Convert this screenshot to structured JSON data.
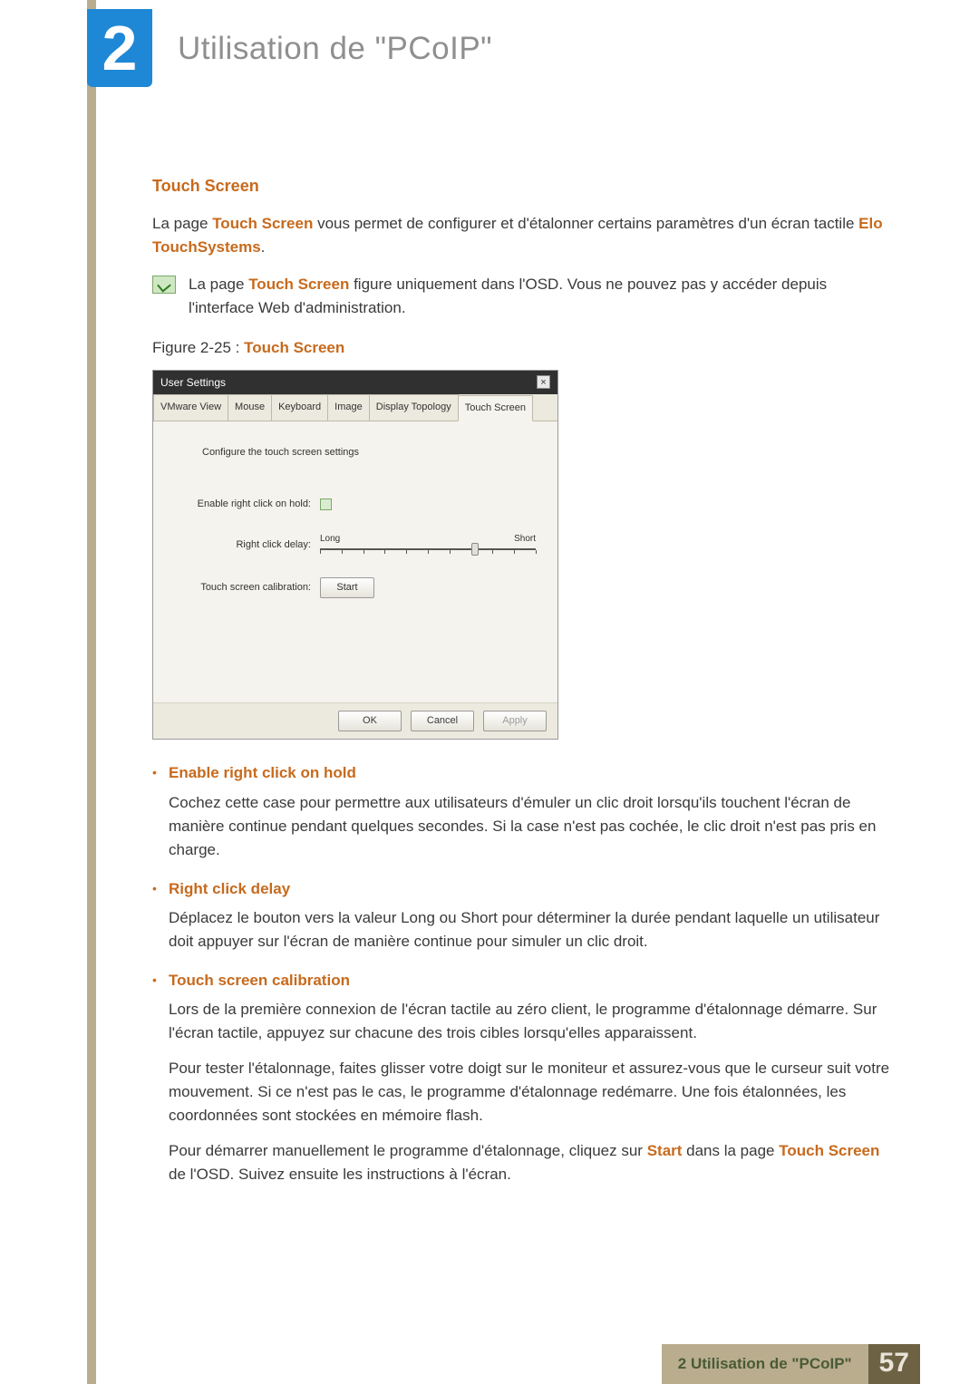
{
  "chapter": {
    "number": "2",
    "title": "Utilisation de \"PCoIP\""
  },
  "section": {
    "heading": "Touch Screen"
  },
  "intro": {
    "p1_pre": "La page ",
    "p1_hl1": "Touch Screen",
    "p1_mid": " vous permet de configurer et d'étalonner certains paramètres d'un écran tactile ",
    "p1_hl2": "Elo TouchSystems",
    "p1_post": "."
  },
  "note": {
    "pre": "La page ",
    "hl": "Touch Screen",
    "post": " figure uniquement dans l'OSD. Vous ne pouvez pas y accéder depuis l'interface Web d'administration."
  },
  "figure": {
    "label": "Figure 2-25 : ",
    "name": "Touch Screen"
  },
  "screenshot": {
    "title": "User Settings",
    "tabs": [
      "VMware View",
      "Mouse",
      "Keyboard",
      "Image",
      "Display Topology",
      "Touch Screen"
    ],
    "active_tab": "Touch Screen",
    "heading": "Configure the touch screen settings",
    "row_enable_label": "Enable right click on hold:",
    "row_delay_label": "Right click delay:",
    "row_calib_label": "Touch screen calibration:",
    "slider": {
      "left": "Long",
      "right": "Short",
      "ticks": 11,
      "thumb_pct": 72
    },
    "start_btn": "Start",
    "buttons": {
      "ok": "OK",
      "cancel": "Cancel",
      "apply": "Apply"
    }
  },
  "items": [
    {
      "title": "Enable right click on hold",
      "body": [
        "Cochez cette case pour permettre aux utilisateurs d'émuler un clic droit lorsqu'ils touchent l'écran de manière continue pendant quelques secondes. Si la case n'est pas cochée, le clic droit n'est pas pris en charge."
      ]
    },
    {
      "title": "Right click delay",
      "body": [
        "Déplacez le bouton vers la valeur Long ou Short pour déterminer la durée pendant laquelle un utilisateur doit appuyer sur l'écran de manière continue pour simuler un clic droit."
      ]
    },
    {
      "title": "Touch screen calibration",
      "body": [
        "Lors de la première connexion de l'écran tactile au zéro client, le programme d'étalonnage démarre. Sur l'écran tactile, appuyez sur chacune des trois cibles lorsqu'elles apparaissent.",
        "Pour tester l'étalonnage, faites glisser votre doigt sur le moniteur et assurez-vous que le curseur suit votre mouvement. Si ce n'est pas le cas, le programme d'étalonnage redémarre. Une fois étalonnées, les coordonnées sont stockées en mémoire flash."
      ],
      "start_line": {
        "pre": "Pour démarrer manuellement le programme d'étalonnage, cliquez sur ",
        "hl1": "Start",
        "mid": " dans la page ",
        "hl2": "Touch Screen",
        "post": " de l'OSD. Suivez ensuite les instructions à l'écran."
      }
    }
  ],
  "footer": {
    "text": "2 Utilisation de \"PCoIP\"",
    "page": "57"
  },
  "colors": {
    "accent": "#c76a1d",
    "stripe": "#b9ad8e",
    "badge": "#1e88d6",
    "footer_num_bg": "#6e6244"
  }
}
